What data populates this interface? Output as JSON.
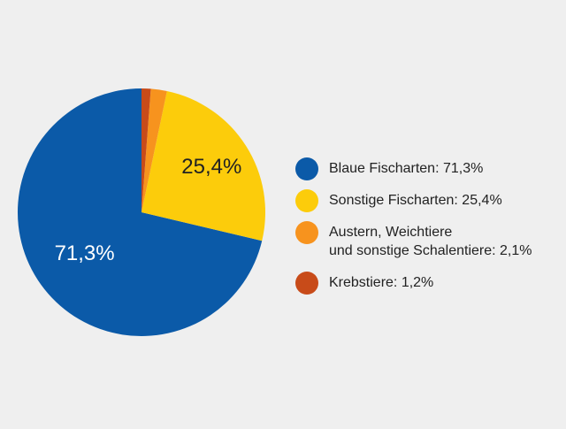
{
  "chart_data": {
    "type": "pie",
    "start_angle_deg": 0,
    "direction": "counterclockwise",
    "slices": [
      {
        "label": "Blaue Fischarten: 71,3%",
        "value": 71.3,
        "color": "#0b5aa8",
        "data_label": "71,3%",
        "data_label_color": "#ffffff"
      },
      {
        "label": "Sonstige Fischarten: 25,4%",
        "value": 25.4,
        "color": "#fccc0b",
        "data_label": "25,4%",
        "data_label_color": "#222222"
      },
      {
        "label": "Austern, Weichtiere\nund sonstige Schalentiere: 2,1%",
        "value": 2.1,
        "color": "#f7931e",
        "data_label": "",
        "data_label_color": "#222222"
      },
      {
        "label": "Krebstiere: 1,2%",
        "value": 1.2,
        "color": "#c84b19",
        "data_label": "",
        "data_label_color": "#222222"
      }
    ],
    "legend_position": "right"
  }
}
